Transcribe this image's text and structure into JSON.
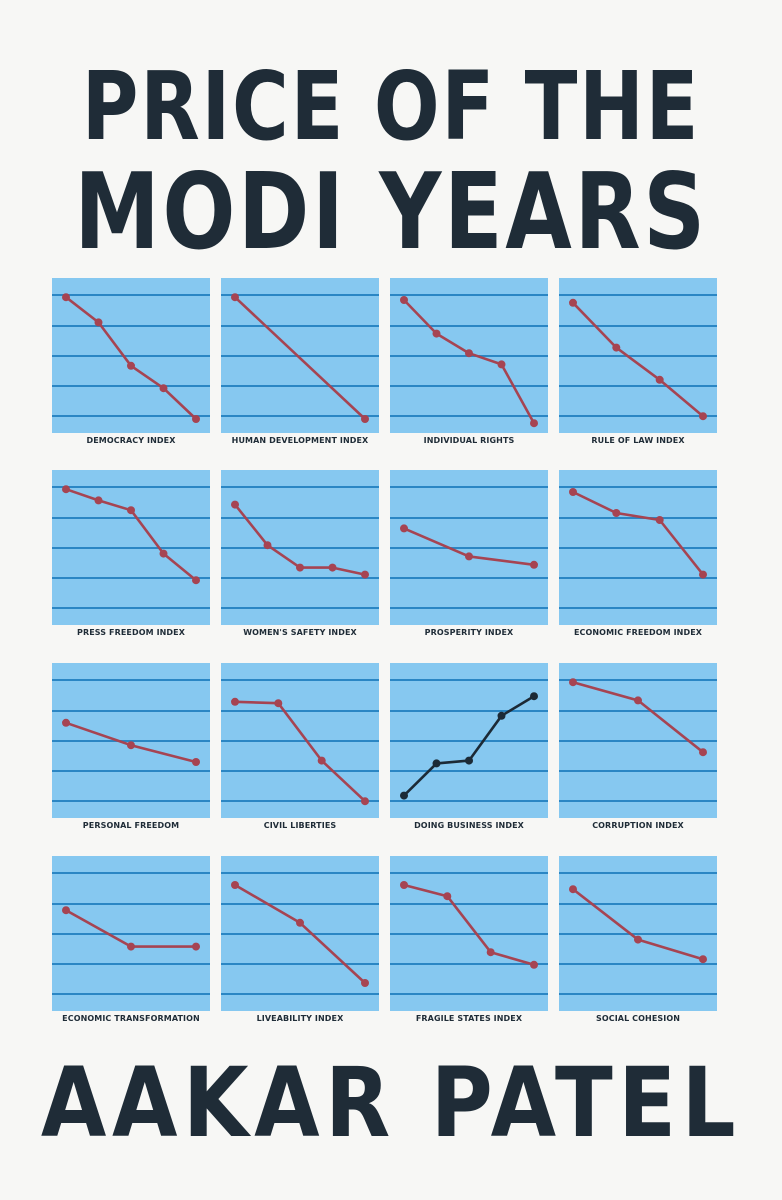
{
  "cover": {
    "title_line_1": "PRICE OF THE",
    "title_line_2": "MODI YEARS",
    "author": "AAKAR PATEL"
  },
  "colors": {
    "background": "#f7f7f5",
    "panel": "#86c8f0",
    "gridline": "#2a86c4",
    "decline_line": "#a64452",
    "rise_line": "#1c2a36",
    "text": "#1f2c37"
  },
  "indices": [
    {
      "label": "DEMOCRACY INDEX",
      "trend": "decline",
      "values": [
        0.92,
        0.74,
        0.43,
        0.27,
        0.05
      ]
    },
    {
      "label": "HUMAN DEVELOPMENT INDEX",
      "trend": "decline",
      "values": [
        0.92,
        0.05
      ]
    },
    {
      "label": "INDIVIDUAL RIGHTS",
      "trend": "decline",
      "values": [
        0.9,
        0.66,
        0.52,
        0.44,
        0.02
      ]
    },
    {
      "label": "RULE OF LAW INDEX",
      "trend": "decline",
      "values": [
        0.88,
        0.56,
        0.33,
        0.07
      ]
    },
    {
      "label": "PRESS FREEDOM INDEX",
      "trend": "decline",
      "values": [
        0.92,
        0.84,
        0.77,
        0.46,
        0.27
      ]
    },
    {
      "label": "WOMEN'S SAFETY INDEX",
      "trend": "decline",
      "values": [
        0.81,
        0.52,
        0.36,
        0.36,
        0.31
      ]
    },
    {
      "label": "PROSPERITY INDEX",
      "trend": "decline",
      "values": [
        0.64,
        0.44,
        0.38
      ]
    },
    {
      "label": "ECONOMIC FREEDOM INDEX",
      "trend": "decline",
      "values": [
        0.9,
        0.75,
        0.7,
        0.31
      ]
    },
    {
      "label": "PERSONAL FREEDOM",
      "trend": "decline",
      "values": [
        0.63,
        0.47,
        0.35
      ]
    },
    {
      "label": "CIVIL LIBERTIES",
      "trend": "decline",
      "values": [
        0.78,
        0.77,
        0.36,
        0.07
      ]
    },
    {
      "label": "DOING BUSINESS INDEX",
      "trend": "rise",
      "values": [
        0.11,
        0.34,
        0.36,
        0.68,
        0.82
      ]
    },
    {
      "label": "CORRUPTION INDEX",
      "trend": "decline",
      "values": [
        0.92,
        0.79,
        0.42
      ]
    },
    {
      "label": "ECONOMIC TRANSFORMATION",
      "trend": "decline",
      "values": [
        0.67,
        0.41,
        0.41
      ]
    },
    {
      "label": "LIVEABILITY INDEX",
      "trend": "decline",
      "values": [
        0.85,
        0.58,
        0.15
      ]
    },
    {
      "label": "FRAGILE STATES INDEX",
      "trend": "decline",
      "values": [
        0.85,
        0.77,
        0.37,
        0.28
      ]
    },
    {
      "label": "SOCIAL COHESION",
      "trend": "decline",
      "values": [
        0.82,
        0.46,
        0.32
      ]
    }
  ]
}
